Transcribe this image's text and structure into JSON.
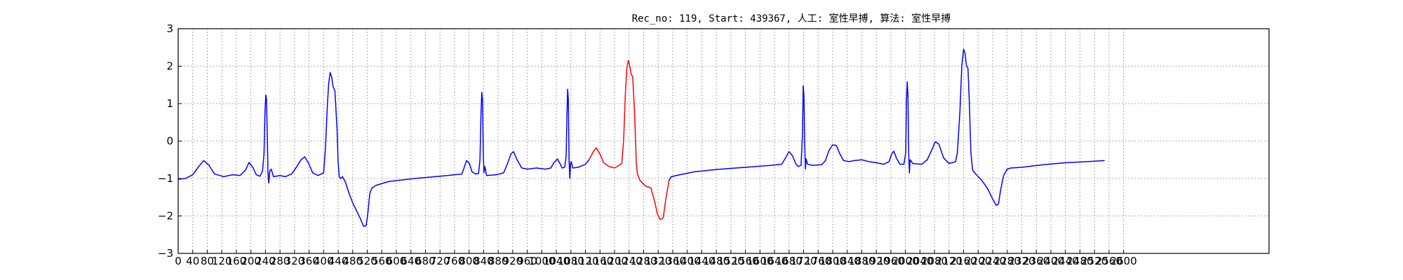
{
  "chart_data": {
    "type": "line",
    "title": "Rec_no: 119, Start: 439367, 人工: 室性早搏, 算法: 室性早搏",
    "xlabel": "",
    "ylabel": "",
    "xlim": [
      0,
      3000
    ],
    "ylim": [
      -3,
      3
    ],
    "xtick_values": [
      0,
      40,
      80,
      120,
      160,
      200,
      240,
      280,
      320,
      360,
      400,
      440,
      480,
      520,
      560,
      600,
      640,
      680,
      720,
      760,
      800,
      840,
      880,
      920,
      960,
      1000,
      1040,
      1080,
      1120,
      1160,
      1200,
      1240,
      1280,
      1320,
      1360,
      1400,
      1440,
      1480,
      1520,
      1560,
      1600,
      1640,
      1680,
      1720,
      1760,
      1800,
      1840,
      1880,
      1920,
      1960,
      2000,
      2040,
      2080,
      2120,
      2160,
      2200,
      2240,
      2280,
      2320,
      2360,
      2400,
      2440,
      2480,
      2520,
      2560,
      2600
    ],
    "xtick_labels": [
      "0",
      "40",
      "80",
      "120",
      "160",
      "200",
      "240",
      "280",
      "320",
      "360",
      "400",
      "440",
      "480",
      "520",
      "560",
      "600",
      "640",
      "680",
      "720",
      "760",
      "800",
      "840",
      "880",
      "920",
      "960",
      "1000",
      "1040",
      "1080",
      "1120",
      "1160",
      "1200",
      "1240",
      "1280",
      "1320",
      "1360",
      "1400",
      "1440",
      "1480",
      "1520",
      "1560",
      "1600",
      "1640",
      "1680",
      "1720",
      "1760",
      "1800",
      "1840",
      "1880",
      "1920",
      "1960",
      "2000",
      "2040",
      "2080",
      "2120",
      "2160",
      "2200",
      "2240",
      "2280",
      "2320",
      "2360",
      "2400",
      "2440",
      "2480",
      "2520",
      "2560",
      "2600"
    ],
    "ytick_values": [
      -3,
      -2,
      -1,
      0,
      1,
      2,
      3
    ],
    "ytick_labels": [
      "−3",
      "−2",
      "−1",
      "0",
      "1",
      "2",
      "3"
    ],
    "grid": true,
    "series": [
      {
        "color": "#0000ff",
        "points": [
          [
            0,
            -1.02
          ],
          [
            20,
            -1.0
          ],
          [
            40,
            -0.9
          ],
          [
            55,
            -0.7
          ],
          [
            70,
            -0.52
          ],
          [
            85,
            -0.65
          ],
          [
            100,
            -0.88
          ],
          [
            125,
            -0.95
          ],
          [
            150,
            -0.9
          ],
          [
            170,
            -0.92
          ],
          [
            185,
            -0.78
          ],
          [
            195,
            -0.57
          ],
          [
            205,
            -0.7
          ],
          [
            215,
            -0.9
          ],
          [
            225,
            -0.94
          ],
          [
            232,
            -0.8
          ],
          [
            236,
            -0.35
          ],
          [
            239,
            0.85
          ],
          [
            241,
            1.23
          ],
          [
            243,
            1.1
          ],
          [
            245,
            0.2
          ],
          [
            247,
            -0.85
          ],
          [
            249,
            -1.12
          ],
          [
            252,
            -0.8
          ],
          [
            256,
            -0.75
          ],
          [
            262,
            -0.95
          ],
          [
            280,
            -0.92
          ],
          [
            295,
            -0.95
          ],
          [
            312,
            -0.88
          ],
          [
            325,
            -0.7
          ],
          [
            338,
            -0.5
          ],
          [
            348,
            -0.42
          ],
          [
            358,
            -0.58
          ],
          [
            370,
            -0.85
          ],
          [
            385,
            -0.92
          ],
          [
            400,
            -0.85
          ],
          [
            405,
            -0.2
          ],
          [
            410,
            0.9
          ],
          [
            414,
            1.55
          ],
          [
            418,
            1.83
          ],
          [
            422,
            1.72
          ],
          [
            426,
            1.45
          ],
          [
            431,
            1.35
          ],
          [
            437,
            0.3
          ],
          [
            440,
            -0.6
          ],
          [
            443,
            -0.95
          ],
          [
            447,
            -1.0
          ],
          [
            452,
            -0.95
          ],
          [
            460,
            -1.1
          ],
          [
            470,
            -1.4
          ],
          [
            480,
            -1.65
          ],
          [
            490,
            -1.85
          ],
          [
            500,
            -2.05
          ],
          [
            510,
            -2.28
          ],
          [
            517,
            -2.26
          ],
          [
            522,
            -1.9
          ],
          [
            527,
            -1.4
          ],
          [
            533,
            -1.25
          ],
          [
            545,
            -1.18
          ],
          [
            580,
            -1.08
          ],
          [
            650,
            -1.0
          ],
          [
            730,
            -0.93
          ],
          [
            780,
            -0.88
          ],
          [
            785,
            -0.75
          ],
          [
            793,
            -0.52
          ],
          [
            801,
            -0.6
          ],
          [
            808,
            -0.82
          ],
          [
            818,
            -0.88
          ],
          [
            826,
            -0.87
          ],
          [
            830,
            -0.5
          ],
          [
            833,
            0.8
          ],
          [
            835,
            1.3
          ],
          [
            837,
            1.1
          ],
          [
            839,
            -0.3
          ],
          [
            841,
            -0.85
          ],
          [
            843,
            -0.68
          ],
          [
            845,
            -0.75
          ],
          [
            848,
            -0.92
          ],
          [
            875,
            -0.9
          ],
          [
            895,
            -0.85
          ],
          [
            905,
            -0.62
          ],
          [
            915,
            -0.35
          ],
          [
            922,
            -0.28
          ],
          [
            932,
            -0.5
          ],
          [
            945,
            -0.72
          ],
          [
            960,
            -0.75
          ],
          [
            985,
            -0.72
          ],
          [
            1010,
            -0.75
          ],
          [
            1025,
            -0.72
          ],
          [
            1033,
            -0.58
          ],
          [
            1043,
            -0.48
          ],
          [
            1050,
            -0.6
          ],
          [
            1056,
            -0.72
          ],
          [
            1063,
            -0.7
          ],
          [
            1067,
            -0.4
          ],
          [
            1069,
            0.6
          ],
          [
            1071,
            1.38
          ],
          [
            1073,
            1.1
          ],
          [
            1075,
            -0.5
          ],
          [
            1077,
            -1.0
          ],
          [
            1079,
            -0.6
          ],
          [
            1081,
            -0.55
          ],
          [
            1085,
            -0.72
          ],
          [
            1100,
            -0.7
          ],
          [
            1120,
            -0.62
          ],
          [
            1130,
            -0.5
          ]
        ]
      },
      {
        "color": "#ff0000",
        "points": [
          [
            1130,
            -0.5
          ],
          [
            1142,
            -0.28
          ],
          [
            1150,
            -0.18
          ],
          [
            1160,
            -0.35
          ],
          [
            1170,
            -0.58
          ],
          [
            1185,
            -0.68
          ],
          [
            1200,
            -0.72
          ],
          [
            1212,
            -0.65
          ],
          [
            1220,
            -0.6
          ],
          [
            1225,
            0.0
          ],
          [
            1230,
            1.3
          ],
          [
            1234,
            1.95
          ],
          [
            1238,
            2.15
          ],
          [
            1242,
            2.0
          ],
          [
            1246,
            1.78
          ],
          [
            1250,
            1.72
          ],
          [
            1255,
            0.8
          ],
          [
            1260,
            -0.6
          ],
          [
            1263,
            -0.88
          ],
          [
            1270,
            -1.05
          ],
          [
            1285,
            -1.2
          ],
          [
            1300,
            -1.25
          ],
          [
            1310,
            -1.6
          ],
          [
            1318,
            -1.95
          ],
          [
            1326,
            -2.1
          ],
          [
            1334,
            -2.05
          ],
          [
            1341,
            -1.55
          ],
          [
            1350,
            -1.05
          ]
        ]
      },
      {
        "color": "#0000ff",
        "points": [
          [
            1350,
            -1.05
          ],
          [
            1356,
            -0.95
          ],
          [
            1380,
            -0.9
          ],
          [
            1420,
            -0.82
          ],
          [
            1480,
            -0.76
          ],
          [
            1560,
            -0.7
          ],
          [
            1630,
            -0.65
          ],
          [
            1660,
            -0.62
          ],
          [
            1672,
            -0.42
          ],
          [
            1680,
            -0.28
          ],
          [
            1690,
            -0.4
          ],
          [
            1698,
            -0.6
          ],
          [
            1705,
            -0.68
          ],
          [
            1713,
            -0.65
          ],
          [
            1717,
            0.2
          ],
          [
            1719,
            1.48
          ],
          [
            1721,
            1.2
          ],
          [
            1723,
            0.0
          ],
          [
            1725,
            -0.75
          ],
          [
            1727,
            -0.48
          ],
          [
            1731,
            -0.62
          ],
          [
            1745,
            -0.65
          ],
          [
            1770,
            -0.63
          ],
          [
            1780,
            -0.52
          ],
          [
            1790,
            -0.25
          ],
          [
            1800,
            -0.1
          ],
          [
            1810,
            -0.12
          ],
          [
            1820,
            -0.35
          ],
          [
            1830,
            -0.52
          ],
          [
            1845,
            -0.55
          ],
          [
            1860,
            -0.52
          ],
          [
            1880,
            -0.5
          ],
          [
            1900,
            -0.55
          ],
          [
            1920,
            -0.58
          ],
          [
            1940,
            -0.62
          ],
          [
            1955,
            -0.55
          ],
          [
            1962,
            -0.35
          ],
          [
            1968,
            -0.27
          ],
          [
            1975,
            -0.45
          ],
          [
            1985,
            -0.62
          ],
          [
            1996,
            -0.62
          ],
          [
            2001,
            -0.3
          ],
          [
            2003,
            1.1
          ],
          [
            2005,
            1.58
          ],
          [
            2007,
            1.2
          ],
          [
            2009,
            -0.3
          ],
          [
            2011,
            -0.85
          ],
          [
            2013,
            -0.5
          ],
          [
            2015,
            -0.52
          ],
          [
            2020,
            -0.6
          ],
          [
            2045,
            -0.62
          ],
          [
            2060,
            -0.5
          ],
          [
            2072,
            -0.25
          ],
          [
            2082,
            -0.02
          ],
          [
            2092,
            -0.08
          ],
          [
            2105,
            -0.45
          ],
          [
            2120,
            -0.6
          ],
          [
            2138,
            -0.55
          ],
          [
            2143,
            -0.3
          ],
          [
            2150,
            0.8
          ],
          [
            2155,
            2.0
          ],
          [
            2160,
            2.45
          ],
          [
            2164,
            2.35
          ],
          [
            2168,
            2.0
          ],
          [
            2172,
            1.95
          ],
          [
            2176,
            1.0
          ],
          [
            2180,
            -0.3
          ],
          [
            2185,
            -0.78
          ],
          [
            2195,
            -0.9
          ],
          [
            2210,
            -1.05
          ],
          [
            2225,
            -1.25
          ],
          [
            2240,
            -1.55
          ],
          [
            2250,
            -1.72
          ],
          [
            2256,
            -1.68
          ],
          [
            2262,
            -1.3
          ],
          [
            2270,
            -0.92
          ],
          [
            2280,
            -0.75
          ],
          [
            2290,
            -0.72
          ],
          [
            2320,
            -0.7
          ],
          [
            2380,
            -0.63
          ],
          [
            2440,
            -0.58
          ],
          [
            2500,
            -0.55
          ],
          [
            2548,
            -0.52
          ]
        ]
      }
    ]
  }
}
